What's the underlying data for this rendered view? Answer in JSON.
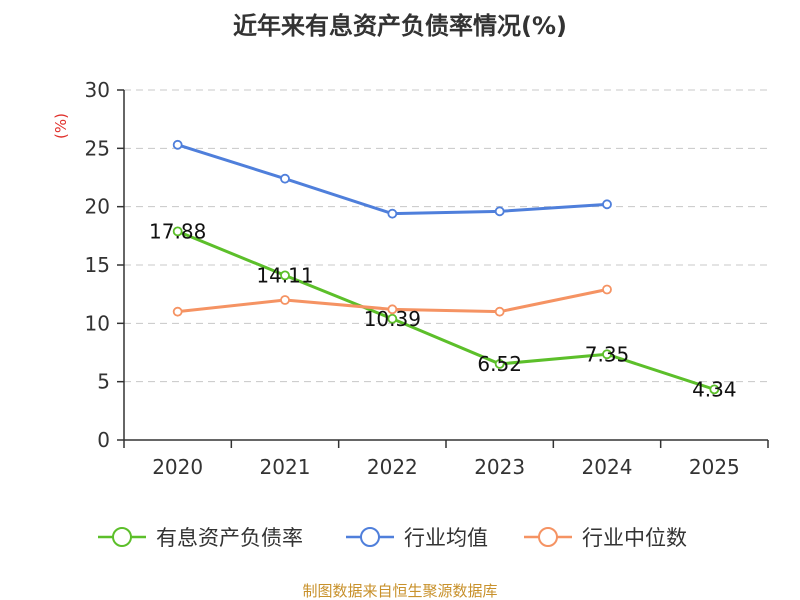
{
  "chart_data": {
    "type": "line",
    "title": "近年来有息资产负债率情况(%)",
    "ylabel": "(%)",
    "xlabel": "",
    "categories": [
      "2020",
      "2021",
      "2022",
      "2023",
      "2024",
      "2025"
    ],
    "yticks": [
      "0",
      "5",
      "10",
      "15",
      "20",
      "25",
      "30"
    ],
    "ylim": [
      0,
      30
    ],
    "grid": true,
    "legend_position": "bottom",
    "series": [
      {
        "name": "有息资产负债率",
        "color": "#5cbf2a",
        "values": [
          17.88,
          14.11,
          10.39,
          6.52,
          7.35,
          4.34
        ],
        "labels": [
          "17.88",
          "14.11",
          "10.39",
          "6.52",
          "7.35",
          "4.34"
        ]
      },
      {
        "name": "行业均值",
        "color": "#4f7fdb",
        "values": [
          25.3,
          22.4,
          19.4,
          19.6,
          20.2,
          null
        ]
      },
      {
        "name": "行业中位数",
        "color": "#f59363",
        "values": [
          11.0,
          12.0,
          11.2,
          11.0,
          12.9,
          null
        ]
      }
    ],
    "source": "制图数据来自恒生聚源数据库"
  }
}
